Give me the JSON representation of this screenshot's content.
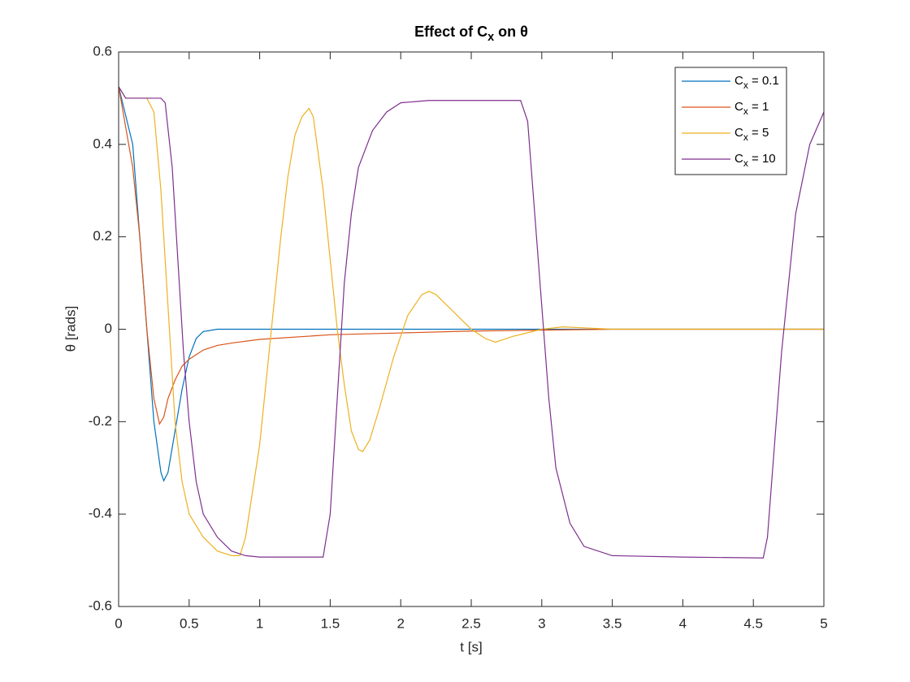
{
  "chart_data": {
    "type": "line",
    "title": "Effect of Cx on θ",
    "x_label": "t [s]",
    "y_label": "θ [rads]",
    "xlim": [
      0,
      5
    ],
    "xticks": [
      0,
      0.5,
      1,
      1.5,
      2,
      2.5,
      3,
      3.5,
      4,
      4.5,
      5
    ],
    "ylim": [
      -0.6,
      0.6
    ],
    "yticks": [
      -0.6,
      -0.4,
      -0.2,
      0,
      0.2,
      0.4,
      0.6
    ],
    "grid": false,
    "legend": "top-right",
    "series": [
      {
        "name": "Cx = 0.1",
        "color": "#0072BD",
        "x": [
          0,
          0.1,
          0.15,
          0.2,
          0.25,
          0.3,
          0.32,
          0.35,
          0.4,
          0.45,
          0.5,
          0.55,
          0.6,
          0.7,
          1,
          2,
          3,
          4,
          5
        ],
        "values": [
          0.525,
          0.4,
          0.2,
          0.0,
          -0.2,
          -0.31,
          -0.328,
          -0.31,
          -0.22,
          -0.13,
          -0.06,
          -0.02,
          -0.005,
          0,
          0,
          0,
          0,
          0,
          0
        ]
      },
      {
        "name": "Cx = 1",
        "color": "#D95319",
        "x": [
          0,
          0.1,
          0.15,
          0.2,
          0.25,
          0.29,
          0.32,
          0.35,
          0.4,
          0.45,
          0.5,
          0.6,
          0.7,
          0.8,
          1.0,
          1.5,
          2,
          2.5,
          3,
          3.5,
          5
        ],
        "values": [
          0.525,
          0.35,
          0.2,
          0.0,
          -0.15,
          -0.205,
          -0.19,
          -0.15,
          -0.11,
          -0.08,
          -0.065,
          -0.045,
          -0.035,
          -0.03,
          -0.022,
          -0.012,
          -0.008,
          -0.004,
          -0.002,
          0,
          0
        ]
      },
      {
        "name": "Cx = 5",
        "color": "#EDB120",
        "x": [
          0,
          0.05,
          0.2,
          0.25,
          0.3,
          0.35,
          0.4,
          0.45,
          0.5,
          0.6,
          0.7,
          0.8,
          0.86,
          0.9,
          1.0,
          1.05,
          1.1,
          1.15,
          1.2,
          1.25,
          1.3,
          1.35,
          1.38,
          1.45,
          1.5,
          1.55,
          1.6,
          1.65,
          1.7,
          1.73,
          1.78,
          1.85,
          1.95,
          2.05,
          2.15,
          2.2,
          2.25,
          2.35,
          2.5,
          2.6,
          2.67,
          2.8,
          3.0,
          3.15,
          3.3,
          3.5,
          5
        ],
        "values": [
          0.525,
          0.5,
          0.5,
          0.47,
          0.3,
          0.05,
          -0.2,
          -0.33,
          -0.4,
          -0.45,
          -0.48,
          -0.49,
          -0.49,
          -0.45,
          -0.25,
          -0.1,
          0.05,
          0.2,
          0.33,
          0.42,
          0.46,
          0.478,
          0.46,
          0.3,
          0.15,
          0.0,
          -0.12,
          -0.22,
          -0.26,
          -0.265,
          -0.24,
          -0.17,
          -0.06,
          0.03,
          0.075,
          0.082,
          0.075,
          0.045,
          0.0,
          -0.02,
          -0.028,
          -0.015,
          0.0,
          0.005,
          0.003,
          0,
          0
        ]
      },
      {
        "name": "Cx = 10",
        "color": "#7E2F8E",
        "x": [
          0,
          0.05,
          0.3,
          0.33,
          0.38,
          0.42,
          0.46,
          0.5,
          0.55,
          0.6,
          0.7,
          0.8,
          0.9,
          1.0,
          1.45,
          1.5,
          1.55,
          1.6,
          1.65,
          1.7,
          1.8,
          1.9,
          2.0,
          2.2,
          2.85,
          2.9,
          2.95,
          3.0,
          3.05,
          3.1,
          3.2,
          3.3,
          3.5,
          4.0,
          4.57,
          4.6,
          4.65,
          4.7,
          4.75,
          4.8,
          4.9,
          5.0
        ],
        "values": [
          0.525,
          0.5,
          0.5,
          0.49,
          0.35,
          0.15,
          -0.05,
          -0.2,
          -0.33,
          -0.4,
          -0.45,
          -0.48,
          -0.49,
          -0.493,
          -0.493,
          -0.4,
          -0.15,
          0.1,
          0.25,
          0.35,
          0.43,
          0.47,
          0.49,
          0.495,
          0.495,
          0.45,
          0.25,
          0.05,
          -0.15,
          -0.3,
          -0.42,
          -0.47,
          -0.49,
          -0.493,
          -0.495,
          -0.45,
          -0.25,
          -0.05,
          0.1,
          0.25,
          0.4,
          0.47
        ]
      }
    ]
  }
}
